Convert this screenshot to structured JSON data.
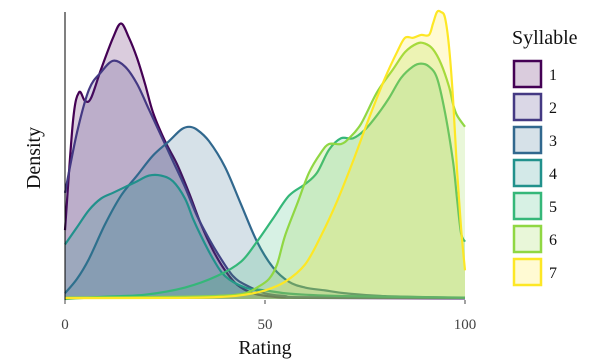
{
  "chart_data": {
    "type": "area",
    "xlabel": "Rating",
    "ylabel": "Density",
    "xlim": [
      0,
      100
    ],
    "xticks": [
      0,
      50,
      100
    ],
    "ylim": [
      0,
      1
    ],
    "legend_title": "Syllable",
    "legend_position": "right",
    "grid": false,
    "series": [
      {
        "name": "1",
        "color": "#440154",
        "points": [
          [
            0,
            0.24
          ],
          [
            2,
            0.62
          ],
          [
            3.5,
            0.72
          ],
          [
            5,
            0.69
          ],
          [
            6.5,
            0.7
          ],
          [
            9,
            0.8
          ],
          [
            12,
            0.91
          ],
          [
            14,
            0.96
          ],
          [
            16,
            0.91
          ],
          [
            18,
            0.84
          ],
          [
            20,
            0.75
          ],
          [
            22,
            0.65
          ],
          [
            25,
            0.55
          ],
          [
            28,
            0.47
          ],
          [
            31,
            0.37
          ],
          [
            34,
            0.26
          ],
          [
            37,
            0.17
          ],
          [
            40,
            0.1
          ],
          [
            43,
            0.05
          ],
          [
            47,
            0.02
          ],
          [
            52,
            0.008
          ],
          [
            60,
            0.004
          ],
          [
            100,
            0.002
          ]
        ]
      },
      {
        "name": "2",
        "color": "#443983",
        "points": [
          [
            0,
            0.37
          ],
          [
            3,
            0.58
          ],
          [
            6,
            0.73
          ],
          [
            9,
            0.79
          ],
          [
            12,
            0.83
          ],
          [
            15,
            0.81
          ],
          [
            18,
            0.75
          ],
          [
            21,
            0.66
          ],
          [
            24,
            0.57
          ],
          [
            27,
            0.48
          ],
          [
            30,
            0.39
          ],
          [
            33,
            0.29
          ],
          [
            36,
            0.21
          ],
          [
            39,
            0.14
          ],
          [
            42,
            0.08
          ],
          [
            45,
            0.05
          ],
          [
            50,
            0.02
          ],
          [
            55,
            0.01
          ],
          [
            60,
            0.006
          ],
          [
            100,
            0.003
          ]
        ]
      },
      {
        "name": "3",
        "color": "#31688e",
        "points": [
          [
            0,
            0.02
          ],
          [
            3,
            0.07
          ],
          [
            6,
            0.14
          ],
          [
            10,
            0.26
          ],
          [
            14,
            0.36
          ],
          [
            18,
            0.43
          ],
          [
            22,
            0.5
          ],
          [
            26,
            0.55
          ],
          [
            29,
            0.59
          ],
          [
            31,
            0.6
          ],
          [
            33,
            0.59
          ],
          [
            36,
            0.55
          ],
          [
            40,
            0.46
          ],
          [
            44,
            0.33
          ],
          [
            48,
            0.2
          ],
          [
            52,
            0.11
          ],
          [
            56,
            0.06
          ],
          [
            60,
            0.04
          ],
          [
            65,
            0.03
          ],
          [
            70,
            0.02
          ],
          [
            80,
            0.01
          ],
          [
            100,
            0.004
          ]
        ]
      },
      {
        "name": "4",
        "color": "#21918c",
        "points": [
          [
            0,
            0.19
          ],
          [
            3,
            0.25
          ],
          [
            6,
            0.31
          ],
          [
            9,
            0.35
          ],
          [
            12,
            0.37
          ],
          [
            15,
            0.39
          ],
          [
            18,
            0.41
          ],
          [
            21,
            0.43
          ],
          [
            24,
            0.43
          ],
          [
            27,
            0.41
          ],
          [
            30,
            0.35
          ],
          [
            32,
            0.28
          ],
          [
            34,
            0.22
          ],
          [
            37,
            0.14
          ],
          [
            40,
            0.08
          ],
          [
            45,
            0.04
          ],
          [
            50,
            0.03
          ],
          [
            55,
            0.02
          ],
          [
            60,
            0.015
          ],
          [
            70,
            0.01
          ],
          [
            100,
            0.005
          ]
        ]
      },
      {
        "name": "5",
        "color": "#35b779",
        "points": [
          [
            0,
            0.0
          ],
          [
            10,
            0.008
          ],
          [
            20,
            0.015
          ],
          [
            30,
            0.04
          ],
          [
            38,
            0.08
          ],
          [
            44,
            0.13
          ],
          [
            48,
            0.2
          ],
          [
            52,
            0.28
          ],
          [
            56,
            0.36
          ],
          [
            60,
            0.4
          ],
          [
            63,
            0.44
          ],
          [
            66,
            0.52
          ],
          [
            69,
            0.56
          ],
          [
            72,
            0.56
          ],
          [
            75,
            0.59
          ],
          [
            78,
            0.64
          ],
          [
            81,
            0.7
          ],
          [
            84,
            0.77
          ],
          [
            87,
            0.81
          ],
          [
            89,
            0.82
          ],
          [
            91,
            0.81
          ],
          [
            93,
            0.77
          ],
          [
            95,
            0.65
          ],
          [
            97,
            0.48
          ],
          [
            98,
            0.35
          ],
          [
            99,
            0.23
          ],
          [
            100,
            0.2
          ]
        ]
      },
      {
        "name": "6",
        "color": "#90d743",
        "points": [
          [
            0,
            0.005
          ],
          [
            30,
            0.008
          ],
          [
            40,
            0.012
          ],
          [
            45,
            0.02
          ],
          [
            48,
            0.04
          ],
          [
            51,
            0.07
          ],
          [
            53,
            0.12
          ],
          [
            55,
            0.22
          ],
          [
            58,
            0.33
          ],
          [
            61,
            0.44
          ],
          [
            64,
            0.51
          ],
          [
            66,
            0.54
          ],
          [
            69,
            0.54
          ],
          [
            71,
            0.56
          ],
          [
            74,
            0.61
          ],
          [
            78,
            0.72
          ],
          [
            82,
            0.8
          ],
          [
            85,
            0.86
          ],
          [
            88,
            0.89
          ],
          [
            90,
            0.89
          ],
          [
            92,
            0.87
          ],
          [
            94,
            0.82
          ],
          [
            96,
            0.74
          ],
          [
            97,
            0.68
          ],
          [
            98,
            0.64
          ],
          [
            100,
            0.6
          ]
        ]
      },
      {
        "name": "7",
        "color": "#fde725",
        "points": [
          [
            0,
            0.003
          ],
          [
            30,
            0.004
          ],
          [
            40,
            0.008
          ],
          [
            45,
            0.015
          ],
          [
            50,
            0.03
          ],
          [
            55,
            0.06
          ],
          [
            60,
            0.12
          ],
          [
            64,
            0.22
          ],
          [
            68,
            0.34
          ],
          [
            72,
            0.48
          ],
          [
            76,
            0.63
          ],
          [
            80,
            0.77
          ],
          [
            83,
            0.86
          ],
          [
            85,
            0.91
          ],
          [
            87,
            0.91
          ],
          [
            89,
            0.92
          ],
          [
            91,
            0.92
          ],
          [
            92,
            0.96
          ],
          [
            93,
            1.0
          ],
          [
            94,
            1.0
          ],
          [
            95,
            0.98
          ],
          [
            96,
            0.88
          ],
          [
            97,
            0.7
          ],
          [
            98,
            0.45
          ],
          [
            99,
            0.25
          ],
          [
            100,
            0.1
          ]
        ]
      }
    ]
  }
}
